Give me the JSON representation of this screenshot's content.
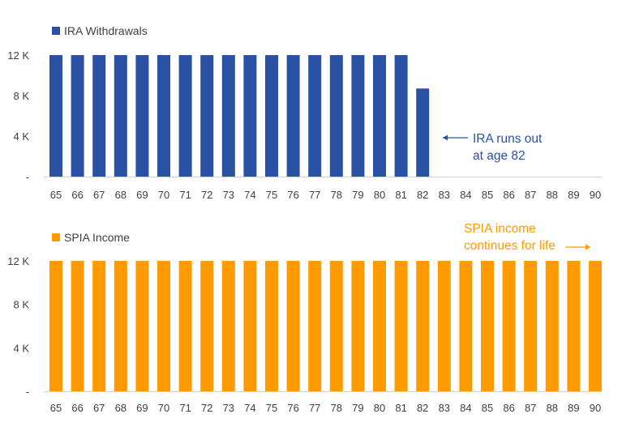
{
  "chart_data": [
    {
      "type": "bar",
      "categories": [
        "65",
        "66",
        "67",
        "68",
        "69",
        "70",
        "71",
        "72",
        "73",
        "74",
        "75",
        "76",
        "77",
        "78",
        "79",
        "80",
        "81",
        "82",
        "83",
        "84",
        "85",
        "86",
        "87",
        "88",
        "89",
        "90"
      ],
      "series": [
        {
          "name": "IRA Withdrawals",
          "color": "#2a52a4",
          "values": [
            12000,
            12000,
            12000,
            12000,
            12000,
            12000,
            12000,
            12000,
            12000,
            12000,
            12000,
            12000,
            12000,
            12000,
            12000,
            12000,
            12000,
            8700,
            0,
            0,
            0,
            0,
            0,
            0,
            0,
            0
          ]
        }
      ],
      "y_ticks": [
        {
          "value": 0,
          "label": "-"
        },
        {
          "value": 4000,
          "label": "4 K"
        },
        {
          "value": 8000,
          "label": "8 K"
        },
        {
          "value": 12000,
          "label": "12 K"
        }
      ],
      "ylim": [
        0,
        12000
      ],
      "legend_position": "top-left",
      "grid": false,
      "annotation": {
        "lines": [
          "IRA runs out",
          "at age 82"
        ],
        "color": "#2a52a4",
        "arrow": "left"
      }
    },
    {
      "type": "bar",
      "categories": [
        "65",
        "66",
        "67",
        "68",
        "69",
        "70",
        "71",
        "72",
        "73",
        "74",
        "75",
        "76",
        "77",
        "78",
        "79",
        "80",
        "81",
        "82",
        "83",
        "84",
        "85",
        "86",
        "87",
        "88",
        "89",
        "90"
      ],
      "series": [
        {
          "name": "SPIA Income",
          "color": "#ff9a00",
          "values": [
            12000,
            12000,
            12000,
            12000,
            12000,
            12000,
            12000,
            12000,
            12000,
            12000,
            12000,
            12000,
            12000,
            12000,
            12000,
            12000,
            12000,
            12000,
            12000,
            12000,
            12000,
            12000,
            12000,
            12000,
            12000,
            12000
          ]
        }
      ],
      "y_ticks": [
        {
          "value": 0,
          "label": "-"
        },
        {
          "value": 4000,
          "label": "4 K"
        },
        {
          "value": 8000,
          "label": "8 K"
        },
        {
          "value": 12000,
          "label": "12 K"
        }
      ],
      "ylim": [
        0,
        12000
      ],
      "legend_position": "top-left",
      "grid": false,
      "annotation": {
        "lines": [
          "SPIA income",
          "continues for life"
        ],
        "color": "#ff9a00",
        "arrow": "right"
      }
    }
  ]
}
